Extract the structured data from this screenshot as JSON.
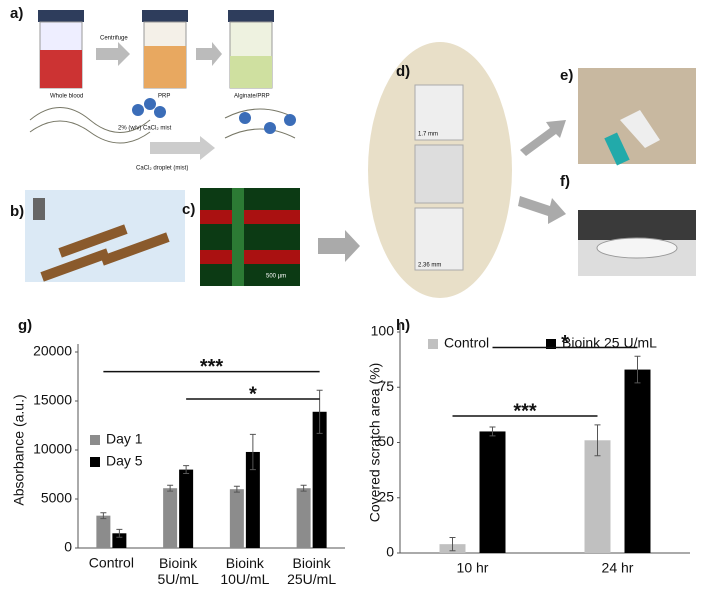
{
  "panels": {
    "a": {
      "label": "a)",
      "texts": [
        "Whole blood",
        "Centrifuge",
        "PRP",
        "Alginate/PRP",
        "2% (w/v) CaCl₂ mist",
        "CaCl₂ droplet (mist)"
      ]
    },
    "b": {
      "label": "b)"
    },
    "c": {
      "label": "c)",
      "scale": "500 µm"
    },
    "d": {
      "label": "d)",
      "scales": [
        "1.7 mm",
        "2.36 mm"
      ]
    },
    "e": {
      "label": "e)"
    },
    "f": {
      "label": "f)"
    },
    "g": {
      "label": "g)"
    },
    "h": {
      "label": "h)"
    }
  },
  "chart_data": [
    {
      "type": "bar",
      "ylabel": "Absorbance (a.u.)",
      "categories": [
        "Control",
        "Bioink 5U/mL",
        "Bioink 10U/mL",
        "Bioink 25U/mL"
      ],
      "series": [
        {
          "name": "Day 1",
          "color": "#8c8c8c",
          "values": [
            3300,
            6100,
            6000,
            6100
          ],
          "errors": [
            300,
            300,
            300,
            300
          ]
        },
        {
          "name": "Day 5",
          "color": "#000000",
          "values": [
            1500,
            8000,
            9800,
            13900
          ],
          "errors": [
            400,
            400,
            1800,
            2200
          ]
        }
      ],
      "ylim": [
        0,
        20000
      ],
      "yticks": [
        0,
        5000,
        10000,
        15000,
        20000
      ],
      "legend": "left",
      "annotations": [
        {
          "text": "***",
          "y": 18000
        },
        {
          "text": "*",
          "y": 15200
        }
      ]
    },
    {
      "type": "bar",
      "ylabel": "Covered scratch area (%)",
      "categories": [
        "10 hr",
        "24 hr"
      ],
      "series": [
        {
          "name": "Control",
          "color": "#c0c0c0",
          "values": [
            4,
            51
          ],
          "errors": [
            3,
            7
          ]
        },
        {
          "name": "Bioink 25 U/mL",
          "color": "#000000",
          "values": [
            55,
            83
          ],
          "errors": [
            2,
            6
          ]
        }
      ],
      "ylim": [
        0,
        100
      ],
      "yticks": [
        0,
        25,
        50,
        75,
        100
      ],
      "legend": "top",
      "annotations": [
        {
          "text": "***",
          "y": 62
        },
        {
          "text": "*",
          "y": 93
        }
      ]
    }
  ]
}
